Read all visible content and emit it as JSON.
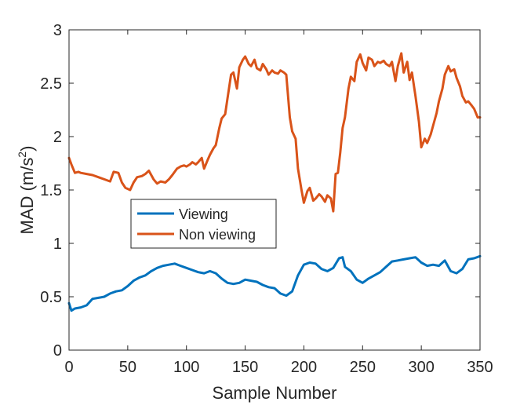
{
  "chart_data": {
    "type": "line",
    "xlabel": "Sample Number",
    "ylabel_main": "MAD (m/s",
    "ylabel_sup": "2",
    "ylabel_close": ")",
    "xlim": [
      0,
      350
    ],
    "ylim": [
      0,
      3
    ],
    "xticks": [
      0,
      50,
      100,
      150,
      200,
      250,
      300,
      350
    ],
    "yticks": [
      0,
      0.5,
      1,
      1.5,
      2,
      2.5,
      3
    ],
    "ytick_labels": [
      "0",
      "0.5",
      "1",
      "1.5",
      "2",
      "2.5",
      "3"
    ],
    "grid": false,
    "legend_position": "center-left",
    "series": [
      {
        "name": "Viewing",
        "color": "#0072BD",
        "x": [
          0,
          2,
          5,
          10,
          15,
          20,
          25,
          30,
          35,
          40,
          45,
          50,
          55,
          60,
          65,
          70,
          75,
          80,
          85,
          90,
          95,
          100,
          105,
          110,
          115,
          120,
          125,
          130,
          135,
          140,
          145,
          150,
          155,
          160,
          165,
          170,
          175,
          180,
          185,
          190,
          195,
          200,
          205,
          210,
          215,
          220,
          225,
          230,
          233,
          235,
          240,
          245,
          250,
          255,
          260,
          265,
          270,
          275,
          280,
          285,
          290,
          295,
          300,
          305,
          310,
          315,
          320,
          325,
          330,
          335,
          340,
          345,
          350
        ],
        "y": [
          0.44,
          0.37,
          0.39,
          0.4,
          0.42,
          0.48,
          0.49,
          0.5,
          0.53,
          0.55,
          0.56,
          0.6,
          0.65,
          0.68,
          0.7,
          0.74,
          0.77,
          0.79,
          0.8,
          0.81,
          0.79,
          0.77,
          0.75,
          0.73,
          0.72,
          0.74,
          0.72,
          0.67,
          0.63,
          0.62,
          0.63,
          0.66,
          0.65,
          0.64,
          0.61,
          0.59,
          0.58,
          0.53,
          0.51,
          0.55,
          0.7,
          0.8,
          0.82,
          0.81,
          0.76,
          0.74,
          0.77,
          0.86,
          0.87,
          0.78,
          0.74,
          0.66,
          0.63,
          0.67,
          0.7,
          0.73,
          0.78,
          0.83,
          0.84,
          0.85,
          0.86,
          0.87,
          0.82,
          0.79,
          0.8,
          0.79,
          0.84,
          0.74,
          0.72,
          0.76,
          0.85,
          0.86,
          0.88
        ]
      },
      {
        "name": "Non viewing",
        "color": "#D95319",
        "x": [
          0,
          2,
          5,
          8,
          10,
          15,
          20,
          25,
          30,
          35,
          38,
          42,
          45,
          48,
          52,
          55,
          58,
          62,
          65,
          68,
          72,
          75,
          78,
          82,
          85,
          88,
          92,
          95,
          98,
          100,
          103,
          105,
          108,
          110,
          113,
          115,
          118,
          120,
          123,
          125,
          128,
          130,
          133,
          135,
          138,
          140,
          143,
          145,
          148,
          150,
          153,
          155,
          158,
          160,
          163,
          165,
          168,
          170,
          173,
          175,
          178,
          180,
          183,
          185,
          188,
          190,
          193,
          195,
          198,
          200,
          203,
          205,
          208,
          210,
          213,
          215,
          218,
          220,
          223,
          225,
          227,
          229,
          231,
          233,
          235,
          238,
          240,
          243,
          245,
          248,
          250,
          253,
          255,
          258,
          260,
          263,
          265,
          268,
          270,
          273,
          275,
          278,
          280,
          283,
          285,
          288,
          290,
          292,
          295,
          298,
          300,
          303,
          305,
          308,
          310,
          313,
          315,
          318,
          320,
          323,
          325,
          328,
          330,
          333,
          335,
          338,
          340,
          343,
          345,
          348,
          350
        ],
        "y": [
          1.8,
          1.74,
          1.66,
          1.67,
          1.66,
          1.65,
          1.64,
          1.62,
          1.6,
          1.58,
          1.67,
          1.66,
          1.57,
          1.52,
          1.5,
          1.57,
          1.62,
          1.63,
          1.65,
          1.68,
          1.6,
          1.56,
          1.58,
          1.57,
          1.6,
          1.64,
          1.7,
          1.72,
          1.73,
          1.72,
          1.74,
          1.76,
          1.74,
          1.76,
          1.8,
          1.7,
          1.78,
          1.83,
          1.89,
          1.92,
          2.08,
          2.17,
          2.21,
          2.36,
          2.58,
          2.6,
          2.45,
          2.65,
          2.72,
          2.75,
          2.68,
          2.66,
          2.72,
          2.64,
          2.62,
          2.68,
          2.63,
          2.58,
          2.62,
          2.6,
          2.59,
          2.62,
          2.6,
          2.58,
          2.18,
          2.05,
          1.98,
          1.7,
          1.5,
          1.38,
          1.49,
          1.52,
          1.4,
          1.42,
          1.46,
          1.44,
          1.39,
          1.45,
          1.42,
          1.3,
          1.65,
          1.66,
          1.85,
          2.08,
          2.18,
          2.45,
          2.56,
          2.52,
          2.7,
          2.77,
          2.69,
          2.62,
          2.74,
          2.72,
          2.66,
          2.7,
          2.69,
          2.71,
          2.68,
          2.66,
          2.7,
          2.52,
          2.66,
          2.78,
          2.6,
          2.7,
          2.53,
          2.6,
          2.38,
          2.14,
          1.9,
          1.98,
          1.94,
          2.02,
          2.1,
          2.22,
          2.33,
          2.45,
          2.58,
          2.66,
          2.61,
          2.63,
          2.55,
          2.47,
          2.38,
          2.32,
          2.33,
          2.29,
          2.26,
          2.18,
          2.18
        ]
      }
    ]
  }
}
